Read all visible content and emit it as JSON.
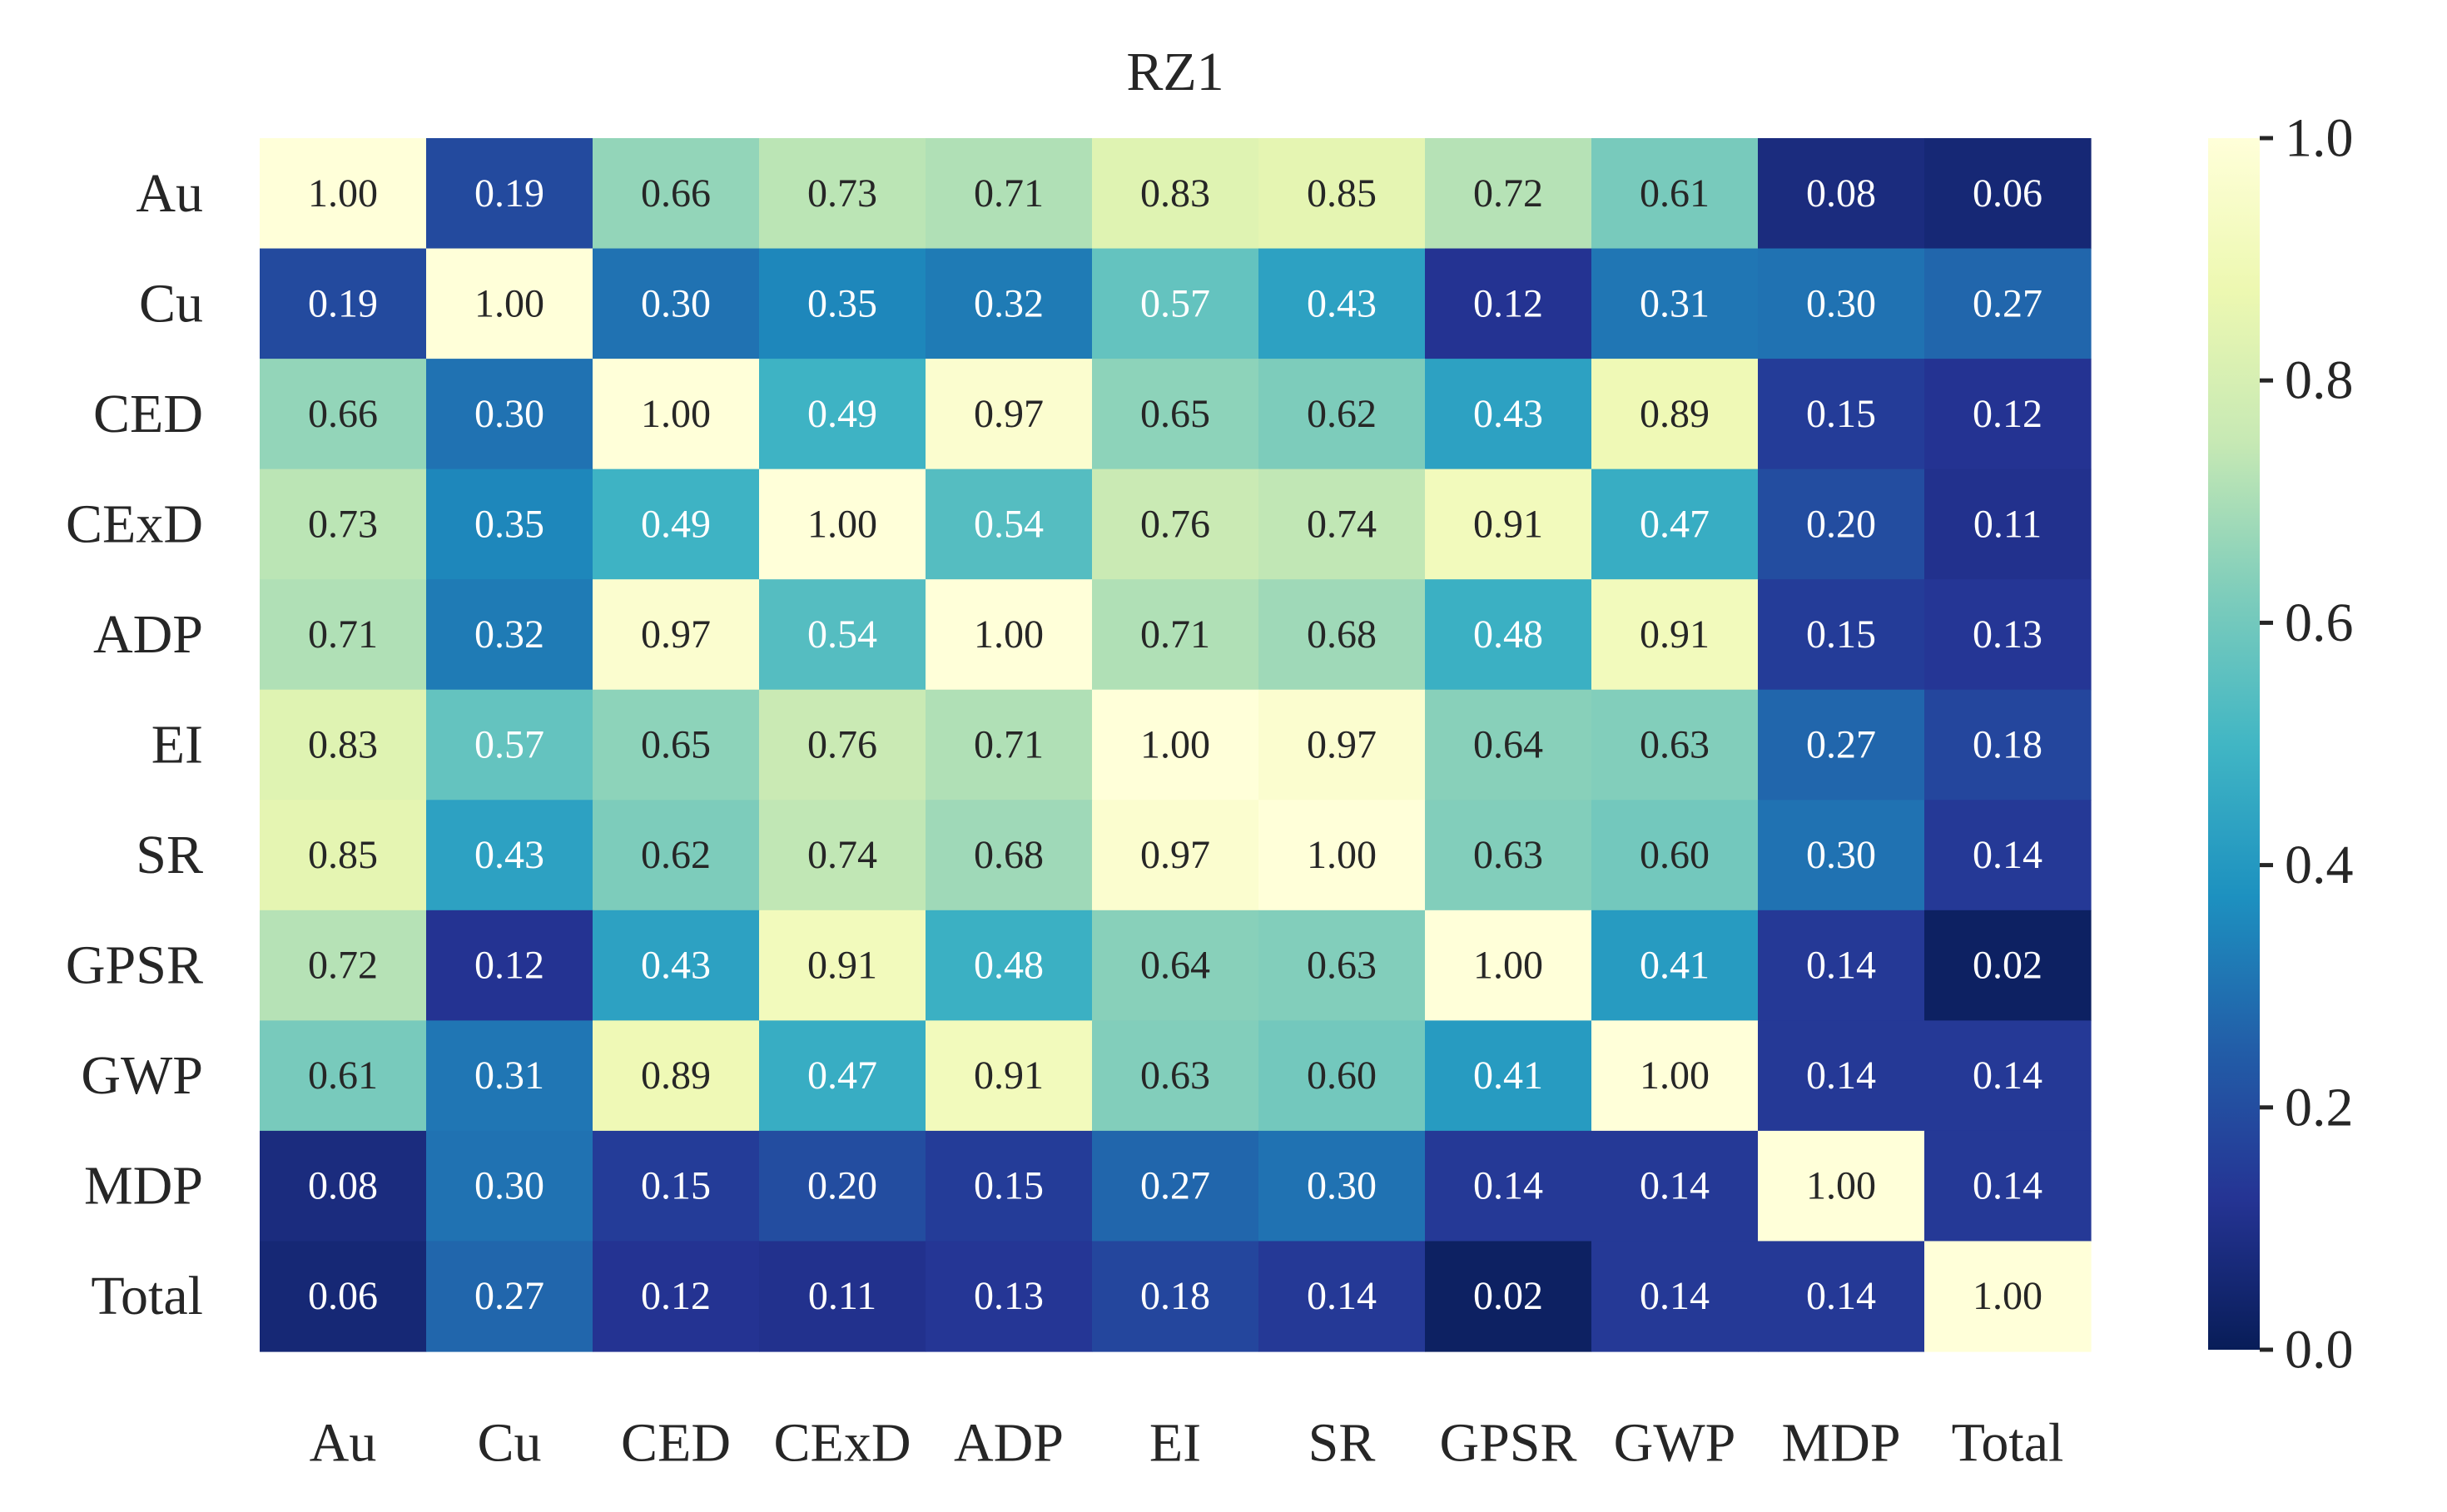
{
  "chart_data": {
    "type": "heatmap",
    "title": "RZ1",
    "xlabel": "",
    "ylabel": "",
    "x_categories": [
      "Au",
      "Cu",
      "CED",
      "CExD",
      "ADP",
      "EI",
      "SR",
      "GPSR",
      "GWP",
      "MDP",
      "Total"
    ],
    "y_categories": [
      "Au",
      "Cu",
      "CED",
      "CExD",
      "ADP",
      "EI",
      "SR",
      "GPSR",
      "GWP",
      "MDP",
      "Total"
    ],
    "values": [
      [
        1.0,
        0.19,
        0.66,
        0.73,
        0.71,
        0.83,
        0.85,
        0.72,
        0.61,
        0.08,
        0.06
      ],
      [
        0.19,
        1.0,
        0.3,
        0.35,
        0.32,
        0.57,
        0.43,
        0.12,
        0.31,
        0.3,
        0.27
      ],
      [
        0.66,
        0.3,
        1.0,
        0.49,
        0.97,
        0.65,
        0.62,
        0.43,
        0.89,
        0.15,
        0.12
      ],
      [
        0.73,
        0.35,
        0.49,
        1.0,
        0.54,
        0.76,
        0.74,
        0.91,
        0.47,
        0.2,
        0.11
      ],
      [
        0.71,
        0.32,
        0.97,
        0.54,
        1.0,
        0.71,
        0.68,
        0.48,
        0.91,
        0.15,
        0.13
      ],
      [
        0.83,
        0.57,
        0.65,
        0.76,
        0.71,
        1.0,
        0.97,
        0.64,
        0.63,
        0.27,
        0.18
      ],
      [
        0.85,
        0.43,
        0.62,
        0.74,
        0.68,
        0.97,
        1.0,
        0.63,
        0.6,
        0.3,
        0.14
      ],
      [
        0.72,
        0.12,
        0.43,
        0.91,
        0.48,
        0.64,
        0.63,
        1.0,
        0.41,
        0.14,
        0.02
      ],
      [
        0.61,
        0.31,
        0.89,
        0.47,
        0.91,
        0.63,
        0.6,
        0.41,
        1.0,
        0.14,
        0.14
      ],
      [
        0.08,
        0.3,
        0.15,
        0.2,
        0.15,
        0.27,
        0.3,
        0.14,
        0.14,
        1.0,
        0.14
      ],
      [
        0.06,
        0.27,
        0.12,
        0.11,
        0.13,
        0.18,
        0.14,
        0.02,
        0.14,
        0.14,
        1.0
      ]
    ],
    "value_format": "2 decimals",
    "colormap": "YlGnBu",
    "color_stops": [
      "#081d58",
      "#253494",
      "#225ea8",
      "#1d91c0",
      "#41b6c4",
      "#7fcdbb",
      "#c7e9b4",
      "#edf8b1",
      "#ffffd9"
    ],
    "colorbar": {
      "range": [
        0.0,
        1.0
      ],
      "ticks": [
        "0.0",
        "0.2",
        "0.4",
        "0.6",
        "0.8",
        "1.0"
      ],
      "placement": "right"
    },
    "grid": false
  }
}
